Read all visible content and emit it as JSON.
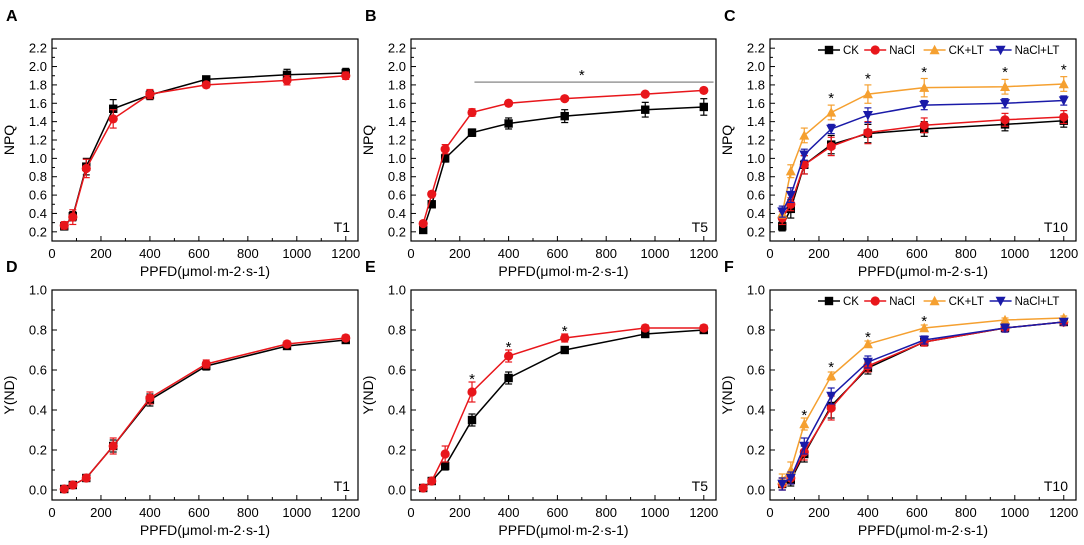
{
  "chart_data": [
    {
      "type": "line",
      "panel": "A",
      "label": "T1",
      "xlabel": "PPFD(μmol·m-2·s-1)",
      "ylabel": "NPQ",
      "xlim": [
        0,
        1250
      ],
      "ylim": [
        0.1,
        2.3
      ],
      "xticks": [
        0,
        200,
        400,
        600,
        800,
        1000,
        1200
      ],
      "yticks": [
        0.2,
        0.4,
        0.6,
        0.8,
        1.0,
        1.2,
        1.4,
        1.6,
        1.8,
        2.0,
        2.2
      ],
      "x": [
        50,
        85,
        140,
        250,
        400,
        630,
        960,
        1200
      ],
      "series": [
        {
          "name": "CK",
          "color": "#000000",
          "marker": "square",
          "values": [
            0.26,
            0.37,
            0.91,
            1.54,
            1.69,
            1.86,
            1.91,
            1.93
          ],
          "errors": [
            0.04,
            0.05,
            0.09,
            0.1,
            0.05,
            0.02,
            0.06,
            0.05
          ]
        },
        {
          "name": "NaCl",
          "color": "#e8161b",
          "marker": "circle",
          "values": [
            0.27,
            0.36,
            0.89,
            1.43,
            1.7,
            1.8,
            1.85,
            1.9
          ],
          "errors": [
            0.04,
            0.08,
            0.1,
            0.1,
            0.05,
            0.03,
            0.05,
            0.04
          ]
        }
      ],
      "annotations": [],
      "sig_line": null
    },
    {
      "type": "line",
      "panel": "B",
      "label": "T5",
      "xlabel": "PPFD(μmol·m-2·s-1)",
      "ylabel": "NPQ",
      "xlim": [
        0,
        1250
      ],
      "ylim": [
        0.1,
        2.3
      ],
      "xticks": [
        0,
        200,
        400,
        600,
        800,
        1000,
        1200
      ],
      "yticks": [
        0.2,
        0.4,
        0.6,
        0.8,
        1.0,
        1.2,
        1.4,
        1.6,
        1.8,
        2.0,
        2.2
      ],
      "x": [
        50,
        85,
        140,
        250,
        400,
        630,
        960,
        1200
      ],
      "series": [
        {
          "name": "CK",
          "color": "#000000",
          "marker": "square",
          "values": [
            0.22,
            0.5,
            1.0,
            1.28,
            1.38,
            1.46,
            1.53,
            1.56
          ],
          "errors": [
            0.02,
            0.03,
            0.04,
            0.04,
            0.06,
            0.07,
            0.08,
            0.09
          ]
        },
        {
          "name": "NaCl",
          "color": "#e8161b",
          "marker": "circle",
          "values": [
            0.29,
            0.61,
            1.1,
            1.5,
            1.6,
            1.65,
            1.7,
            1.74
          ],
          "errors": [
            0.02,
            0.03,
            0.05,
            0.04,
            0.03,
            0.02,
            0.02,
            0.02
          ]
        }
      ],
      "annotations": [
        {
          "text": "*",
          "x": 700,
          "y": 1.92
        }
      ],
      "sig_line": {
        "x1": 260,
        "x2": 1240,
        "y": 1.83
      }
    },
    {
      "type": "line",
      "panel": "C",
      "label": "T10",
      "xlabel": "PPFD(μmol·m-2·s-1)",
      "ylabel": "NPQ",
      "xlim": [
        0,
        1250
      ],
      "ylim": [
        0.1,
        2.3
      ],
      "xticks": [
        0,
        200,
        400,
        600,
        800,
        1000,
        1200
      ],
      "yticks": [
        0.2,
        0.4,
        0.6,
        0.8,
        1.0,
        1.2,
        1.4,
        1.6,
        1.8,
        2.0,
        2.2
      ],
      "x": [
        50,
        85,
        140,
        250,
        400,
        630,
        960,
        1200
      ],
      "series": [
        {
          "name": "CK",
          "color": "#000000",
          "marker": "square",
          "values": [
            0.26,
            0.45,
            0.93,
            1.15,
            1.27,
            1.32,
            1.37,
            1.41
          ],
          "errors": [
            0.05,
            0.1,
            0.1,
            0.1,
            0.1,
            0.08,
            0.07,
            0.07
          ]
        },
        {
          "name": "NaCl",
          "color": "#e8161b",
          "marker": "circle",
          "values": [
            0.35,
            0.5,
            0.93,
            1.13,
            1.28,
            1.36,
            1.42,
            1.45
          ],
          "errors": [
            0.07,
            0.07,
            0.1,
            0.1,
            0.12,
            0.08,
            0.07,
            0.07
          ]
        },
        {
          "name": "CK+LT",
          "color": "#f5a030",
          "marker": "triangle-up",
          "values": [
            0.4,
            0.86,
            1.25,
            1.5,
            1.7,
            1.77,
            1.78,
            1.81
          ],
          "errors": [
            0.05,
            0.07,
            0.08,
            0.08,
            0.1,
            0.1,
            0.08,
            0.08
          ]
        },
        {
          "name": "NaCl+LT",
          "color": "#1a1aa8",
          "marker": "triangle-down",
          "values": [
            0.42,
            0.6,
            1.04,
            1.32,
            1.47,
            1.58,
            1.6,
            1.63
          ],
          "errors": [
            0.06,
            0.08,
            0.06,
            0.05,
            0.08,
            0.05,
            0.05,
            0.05
          ]
        }
      ],
      "annotations": [
        {
          "text": "*",
          "x": 250,
          "y": 1.67
        },
        {
          "text": "*",
          "x": 400,
          "y": 1.88
        },
        {
          "text": "*",
          "x": 630,
          "y": 1.95
        },
        {
          "text": "*",
          "x": 960,
          "y": 1.95
        },
        {
          "text": "*",
          "x": 1200,
          "y": 1.98
        }
      ],
      "sig_line": null,
      "legend": "top"
    },
    {
      "type": "line",
      "panel": "D",
      "label": "T1",
      "xlabel": "PPFD(μmol·m-2·s-1)",
      "ylabel": "Y(ND)",
      "xlim": [
        0,
        1250
      ],
      "ylim": [
        -0.05,
        1.0
      ],
      "xticks": [
        0,
        200,
        400,
        600,
        800,
        1000,
        1200
      ],
      "yticks": [
        0.0,
        0.2,
        0.4,
        0.6,
        0.8,
        1.0
      ],
      "x": [
        50,
        85,
        140,
        250,
        400,
        630,
        960,
        1200
      ],
      "series": [
        {
          "name": "CK",
          "color": "#000000",
          "marker": "square",
          "values": [
            0.005,
            0.025,
            0.06,
            0.22,
            0.45,
            0.62,
            0.72,
            0.75
          ],
          "errors": [
            0.01,
            0.01,
            0.015,
            0.03,
            0.03,
            0.02,
            0.015,
            0.015
          ]
        },
        {
          "name": "NaCl",
          "color": "#e8161b",
          "marker": "circle",
          "values": [
            0.005,
            0.025,
            0.06,
            0.22,
            0.46,
            0.63,
            0.73,
            0.76
          ],
          "errors": [
            0.01,
            0.01,
            0.015,
            0.04,
            0.03,
            0.02,
            0.015,
            0.015
          ]
        }
      ],
      "annotations": [],
      "sig_line": null
    },
    {
      "type": "line",
      "panel": "E",
      "label": "T5",
      "xlabel": "PPFD(μmol·m-2·s-1)",
      "ylabel": "Y(ND)",
      "xlim": [
        0,
        1250
      ],
      "ylim": [
        -0.05,
        1.0
      ],
      "xticks": [
        0,
        200,
        400,
        600,
        800,
        1000,
        1200
      ],
      "yticks": [
        0.0,
        0.2,
        0.4,
        0.6,
        0.8,
        1.0
      ],
      "x": [
        50,
        85,
        140,
        250,
        400,
        630,
        960,
        1200
      ],
      "series": [
        {
          "name": "CK",
          "color": "#000000",
          "marker": "square",
          "values": [
            0.01,
            0.045,
            0.12,
            0.35,
            0.56,
            0.7,
            0.78,
            0.8
          ],
          "errors": [
            0.01,
            0.01,
            0.02,
            0.03,
            0.03,
            0.015,
            0.015,
            0.015
          ]
        },
        {
          "name": "NaCl",
          "color": "#e8161b",
          "marker": "circle",
          "values": [
            0.01,
            0.045,
            0.18,
            0.49,
            0.67,
            0.76,
            0.81,
            0.81
          ],
          "errors": [
            0.01,
            0.01,
            0.04,
            0.05,
            0.03,
            0.02,
            0.015,
            0.015
          ]
        }
      ],
      "annotations": [
        {
          "text": "*",
          "x": 250,
          "y": 0.56
        },
        {
          "text": "*",
          "x": 400,
          "y": 0.72
        },
        {
          "text": "*",
          "x": 630,
          "y": 0.8
        }
      ],
      "sig_line": null
    },
    {
      "type": "line",
      "panel": "F",
      "label": "T10",
      "xlabel": "PPFD(μmol·m-2·s-1)",
      "ylabel": "Y(ND)",
      "xlim": [
        0,
        1250
      ],
      "ylim": [
        -0.05,
        1.0
      ],
      "xticks": [
        0,
        200,
        400,
        600,
        800,
        1000,
        1200
      ],
      "yticks": [
        0.0,
        0.2,
        0.4,
        0.6,
        0.8,
        1.0
      ],
      "x": [
        50,
        85,
        140,
        250,
        400,
        630,
        960,
        1200
      ],
      "series": [
        {
          "name": "CK",
          "color": "#000000",
          "marker": "square",
          "values": [
            0.03,
            0.05,
            0.18,
            0.42,
            0.61,
            0.74,
            0.81,
            0.84
          ],
          "errors": [
            0.03,
            0.03,
            0.04,
            0.06,
            0.03,
            0.02,
            0.02,
            0.015
          ]
        },
        {
          "name": "NaCl",
          "color": "#e8161b",
          "marker": "circle",
          "values": [
            0.03,
            0.06,
            0.19,
            0.41,
            0.62,
            0.74,
            0.81,
            0.84
          ],
          "errors": [
            0.03,
            0.03,
            0.04,
            0.06,
            0.03,
            0.02,
            0.02,
            0.015
          ]
        },
        {
          "name": "CK+LT",
          "color": "#f5a030",
          "marker": "triangle-up",
          "values": [
            0.05,
            0.1,
            0.33,
            0.57,
            0.73,
            0.81,
            0.85,
            0.86
          ],
          "errors": [
            0.03,
            0.04,
            0.03,
            0.02,
            0.015,
            0.015,
            0.01,
            0.01
          ]
        },
        {
          "name": "NaCl+LT",
          "color": "#1a1aa8",
          "marker": "triangle-down",
          "values": [
            0.03,
            0.06,
            0.22,
            0.47,
            0.64,
            0.75,
            0.81,
            0.84
          ],
          "errors": [
            0.03,
            0.03,
            0.04,
            0.04,
            0.03,
            0.02,
            0.02,
            0.015
          ]
        }
      ],
      "annotations": [
        {
          "text": "*",
          "x": 140,
          "y": 0.38
        },
        {
          "text": "*",
          "x": 250,
          "y": 0.62
        },
        {
          "text": "*",
          "x": 400,
          "y": 0.77
        },
        {
          "text": "*",
          "x": 630,
          "y": 0.85
        }
      ],
      "sig_line": null,
      "legend": "top"
    }
  ]
}
